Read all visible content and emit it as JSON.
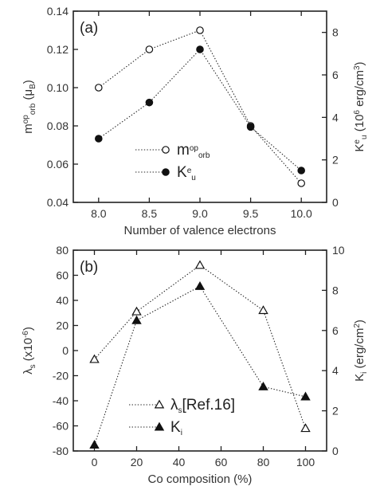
{
  "chart_data": [
    {
      "type": "line",
      "panel_label": "(a)",
      "x": [
        8.0,
        8.5,
        9.0,
        9.5,
        10.0
      ],
      "xlabel": "Number of valence electrons",
      "x_ticks": [
        "8.0",
        "8.5",
        "9.0",
        "9.5",
        "10.0"
      ],
      "xlim": [
        7.75,
        10.25
      ],
      "ylabel": "m^op_orb (μB)",
      "ylim": [
        0.04,
        0.14
      ],
      "y_ticks": [
        "0.04",
        "0.06",
        "0.08",
        "0.10",
        "0.12",
        "0.14"
      ],
      "y2label": "K^e_u (10^6 erg/cm^3)",
      "y2lim": [
        0,
        9
      ],
      "y2_ticks": [
        "0",
        "2",
        "4",
        "6",
        "8"
      ],
      "series": [
        {
          "name": "m^op_orb",
          "axis": "left",
          "marker": "open-circle",
          "values": [
            0.1,
            0.12,
            0.13,
            0.08,
            0.05
          ]
        },
        {
          "name": "K^e_u",
          "axis": "right",
          "marker": "filled-circle",
          "values": [
            3.0,
            4.7,
            7.2,
            3.55,
            1.5
          ]
        }
      ],
      "legend_position": "lower-center"
    },
    {
      "type": "line",
      "panel_label": "(b)",
      "x": [
        0,
        20,
        50,
        80,
        100
      ],
      "xlabel": "Co composition (%)",
      "x_ticks": [
        "0",
        "20",
        "40",
        "60",
        "80",
        "100"
      ],
      "xlim": [
        -10,
        110
      ],
      "ylabel": "λs (x10^-6)",
      "ylim": [
        -80,
        80
      ],
      "y_ticks": [
        "-80",
        "-60",
        "-40",
        "-20",
        "0",
        "20",
        "40",
        "60",
        "80"
      ],
      "y2label": "Ki (erg/cm^2)",
      "y2lim": [
        0,
        10
      ],
      "y2_ticks": [
        "0",
        "2",
        "4",
        "6",
        "8",
        "10"
      ],
      "series": [
        {
          "name": "λs[Ref.16]",
          "axis": "left",
          "marker": "open-triangle",
          "values": [
            -7,
            31,
            68,
            32,
            -62
          ]
        },
        {
          "name": "Ki",
          "axis": "right",
          "marker": "filled-triangle",
          "values": [
            0.3,
            6.5,
            8.2,
            3.2,
            2.7
          ]
        }
      ],
      "legend_position": "lower-center"
    }
  ]
}
